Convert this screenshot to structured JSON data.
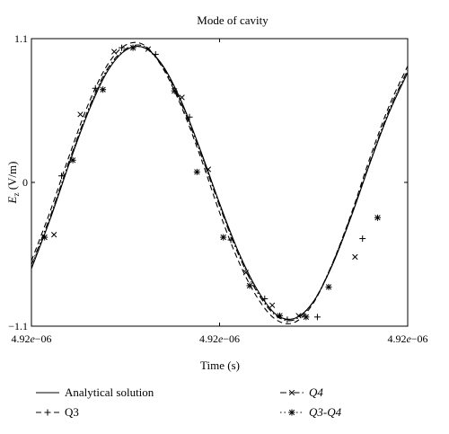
{
  "chart_data": {
    "type": "line",
    "title": "Mode of cavity",
    "xlabel": "Time (s)",
    "ylabel": {
      "main": "E",
      "sub": "z",
      "unit": " (V/m)"
    },
    "xticks": [
      {
        "pos": 0.0,
        "label_a": "4.92",
        "label_b": "e",
        "label_c": "−06"
      },
      {
        "pos": 0.5,
        "label_a": "4.92",
        "label_b": "e",
        "label_c": "−06"
      },
      {
        "pos": 1.0,
        "label_a": "4.92",
        "label_b": "e",
        "label_c": "−06"
      }
    ],
    "yticks": [
      {
        "value": 1.1,
        "label": "1.1"
      },
      {
        "value": 0,
        "label": "0"
      },
      {
        "value": -1.1,
        "label": "−1.1"
      }
    ],
    "ylim": [
      -1.1,
      1.1
    ],
    "xlim": [
      0,
      1
    ],
    "grid": false,
    "legend_position": "below",
    "series": [
      {
        "name": "Analytical solution",
        "style": "solid",
        "marker": "none",
        "color": "#000000",
        "x": [
          0.0,
          0.05,
          0.1,
          0.15,
          0.2,
          0.25,
          0.3,
          0.35,
          0.4,
          0.45,
          0.5,
          0.55,
          0.6,
          0.65,
          0.7,
          0.75,
          0.8,
          0.85,
          0.9,
          0.95,
          1.0
        ],
        "y": [
          -0.66,
          -0.28,
          0.14,
          0.53,
          0.84,
          1.01,
          1.03,
          0.89,
          0.61,
          0.24,
          -0.16,
          -0.53,
          -0.82,
          -1.01,
          -1.04,
          -0.91,
          -0.63,
          -0.26,
          0.15,
          0.53,
          0.84
        ]
      },
      {
        "name": "Q3",
        "style": "dashed",
        "marker": "plus",
        "color": "#000000",
        "x": [
          0.0,
          0.05,
          0.1,
          0.15,
          0.2,
          0.25,
          0.3,
          0.35,
          0.4,
          0.45,
          0.5,
          0.55,
          0.6,
          0.65,
          0.7,
          0.75,
          0.8,
          0.85,
          0.9,
          0.95,
          1.0
        ],
        "y": [
          -0.6,
          -0.22,
          0.2,
          0.59,
          0.89,
          1.05,
          1.05,
          0.87,
          0.57,
          0.19,
          -0.23,
          -0.6,
          -0.88,
          -1.05,
          -1.07,
          -0.92,
          -0.62,
          -0.24,
          0.19,
          0.58,
          0.89
        ],
        "marker_x": [
          0.08,
          0.17,
          0.24,
          0.33,
          0.42,
          0.53,
          0.62,
          0.68,
          0.76,
          0.88
        ],
        "marker_y": [
          0.05,
          0.72,
          1.03,
          0.98,
          0.5,
          -0.44,
          -0.89,
          -1.05,
          -1.03,
          -0.43
        ]
      },
      {
        "name": "Q4",
        "style": "dashdot",
        "marker": "x",
        "color": "#000000",
        "x": [
          0.0,
          0.05,
          0.1,
          0.15,
          0.2,
          0.25,
          0.3,
          0.35,
          0.4,
          0.45,
          0.5,
          0.55,
          0.6,
          0.65,
          0.7,
          0.75,
          0.8,
          0.85,
          0.9,
          0.95,
          1.0
        ],
        "y": [
          -0.63,
          -0.26,
          0.16,
          0.55,
          0.86,
          1.02,
          1.04,
          0.88,
          0.59,
          0.22,
          -0.18,
          -0.55,
          -0.84,
          -1.02,
          -1.05,
          -0.91,
          -0.62,
          -0.25,
          0.16,
          0.55,
          0.86
        ],
        "marker_x": [
          0.06,
          0.13,
          0.22,
          0.31,
          0.4,
          0.47,
          0.57,
          0.64,
          0.71,
          0.86
        ],
        "marker_y": [
          -0.4,
          0.52,
          1.0,
          1.02,
          0.65,
          0.1,
          -0.69,
          -0.94,
          -1.02,
          -0.57
        ]
      },
      {
        "name": "Q3-Q4",
        "style": "dotted",
        "marker": "asterisk",
        "color": "#000000",
        "x": [
          0.0,
          0.05,
          0.1,
          0.15,
          0.2,
          0.25,
          0.3,
          0.35,
          0.4,
          0.45,
          0.5,
          0.55,
          0.6,
          0.65,
          0.7,
          0.75,
          0.8,
          0.85,
          0.9,
          0.95,
          1.0
        ],
        "y": [
          -0.64,
          -0.27,
          0.15,
          0.54,
          0.85,
          1.01,
          1.03,
          0.88,
          0.6,
          0.23,
          -0.17,
          -0.54,
          -0.83,
          -1.01,
          -1.04,
          -0.91,
          -0.63,
          -0.26,
          0.15,
          0.54,
          0.85
        ],
        "marker_x": [
          0.035,
          0.11,
          0.19,
          0.27,
          0.38,
          0.44,
          0.51,
          0.58,
          0.66,
          0.73,
          0.79,
          0.92
        ],
        "marker_y": [
          -0.42,
          0.17,
          0.71,
          1.03,
          0.7,
          0.08,
          -0.42,
          -0.79,
          -1.02,
          -1.03,
          -0.8,
          -0.27
        ]
      }
    ]
  }
}
